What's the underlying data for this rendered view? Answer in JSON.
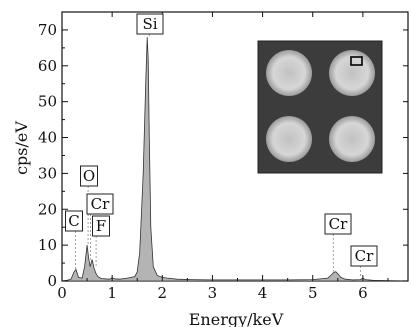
{
  "chart_data": {
    "type": "area",
    "title": "",
    "xlabel": "Energy/keV",
    "ylabel": "cps/eV",
    "xlim": [
      0,
      6.9
    ],
    "ylim": [
      0,
      75
    ],
    "x_ticks": [
      0,
      1,
      2,
      3,
      4,
      5,
      6
    ],
    "y_ticks": [
      0,
      10,
      20,
      30,
      40,
      50,
      60,
      70
    ],
    "grid": false,
    "colors": {
      "fill": "#b4b4b4",
      "stroke": "#333333"
    },
    "series": [
      {
        "x": [
          0.0,
          0.1,
          0.18,
          0.24,
          0.28,
          0.33,
          0.4,
          0.45,
          0.5,
          0.53,
          0.56,
          0.6,
          0.64,
          0.68,
          0.72,
          0.78,
          0.85,
          0.95,
          1.0,
          1.05,
          1.15,
          1.3,
          1.45,
          1.5,
          1.55,
          1.62,
          1.67,
          1.7,
          1.72,
          1.74,
          1.77,
          1.82,
          1.9,
          2.0,
          2.1,
          2.3,
          2.6,
          3.0,
          3.5,
          4.0,
          4.5,
          5.0,
          5.3,
          5.38,
          5.42,
          5.46,
          5.5,
          5.56,
          5.65,
          5.8,
          5.95,
          6.0,
          6.05,
          6.2,
          6.5,
          6.9
        ],
        "y": [
          0,
          0.2,
          0.5,
          2.5,
          3.2,
          1.0,
          0.8,
          4.0,
          10.0,
          6.5,
          4.0,
          6.0,
          3.5,
          2.0,
          1.2,
          0.7,
          0.6,
          0.5,
          0.9,
          0.6,
          0.5,
          0.8,
          1.2,
          2.5,
          8.0,
          30.0,
          55.0,
          68.0,
          62.0,
          40.0,
          15.0,
          4.0,
          1.5,
          1.0,
          0.8,
          0.5,
          0.4,
          0.3,
          0.3,
          0.3,
          0.3,
          0.4,
          0.8,
          1.8,
          2.4,
          2.6,
          2.0,
          1.0,
          0.5,
          0.3,
          0.4,
          0.8,
          0.4,
          0.2,
          0.1,
          0
        ]
      }
    ],
    "annotations": [
      {
        "text": "Si",
        "x": 1.74,
        "y": 68
      },
      {
        "text": "O",
        "x": 0.52,
        "y": 10
      },
      {
        "text": "Cr",
        "x": 0.57,
        "y": 6
      },
      {
        "text": "F",
        "x": 0.68,
        "y": 4
      },
      {
        "text": "C",
        "x": 0.27,
        "y": 3
      },
      {
        "text": "Cr",
        "x": 5.41,
        "y": 2.6
      },
      {
        "text": "Cr",
        "x": 5.95,
        "y": 0.8
      }
    ]
  },
  "inset": {
    "background": "#3c3c3c",
    "dot_color": "#d6d6d6",
    "dot_core": "#c2c2c2",
    "dots": 4
  }
}
